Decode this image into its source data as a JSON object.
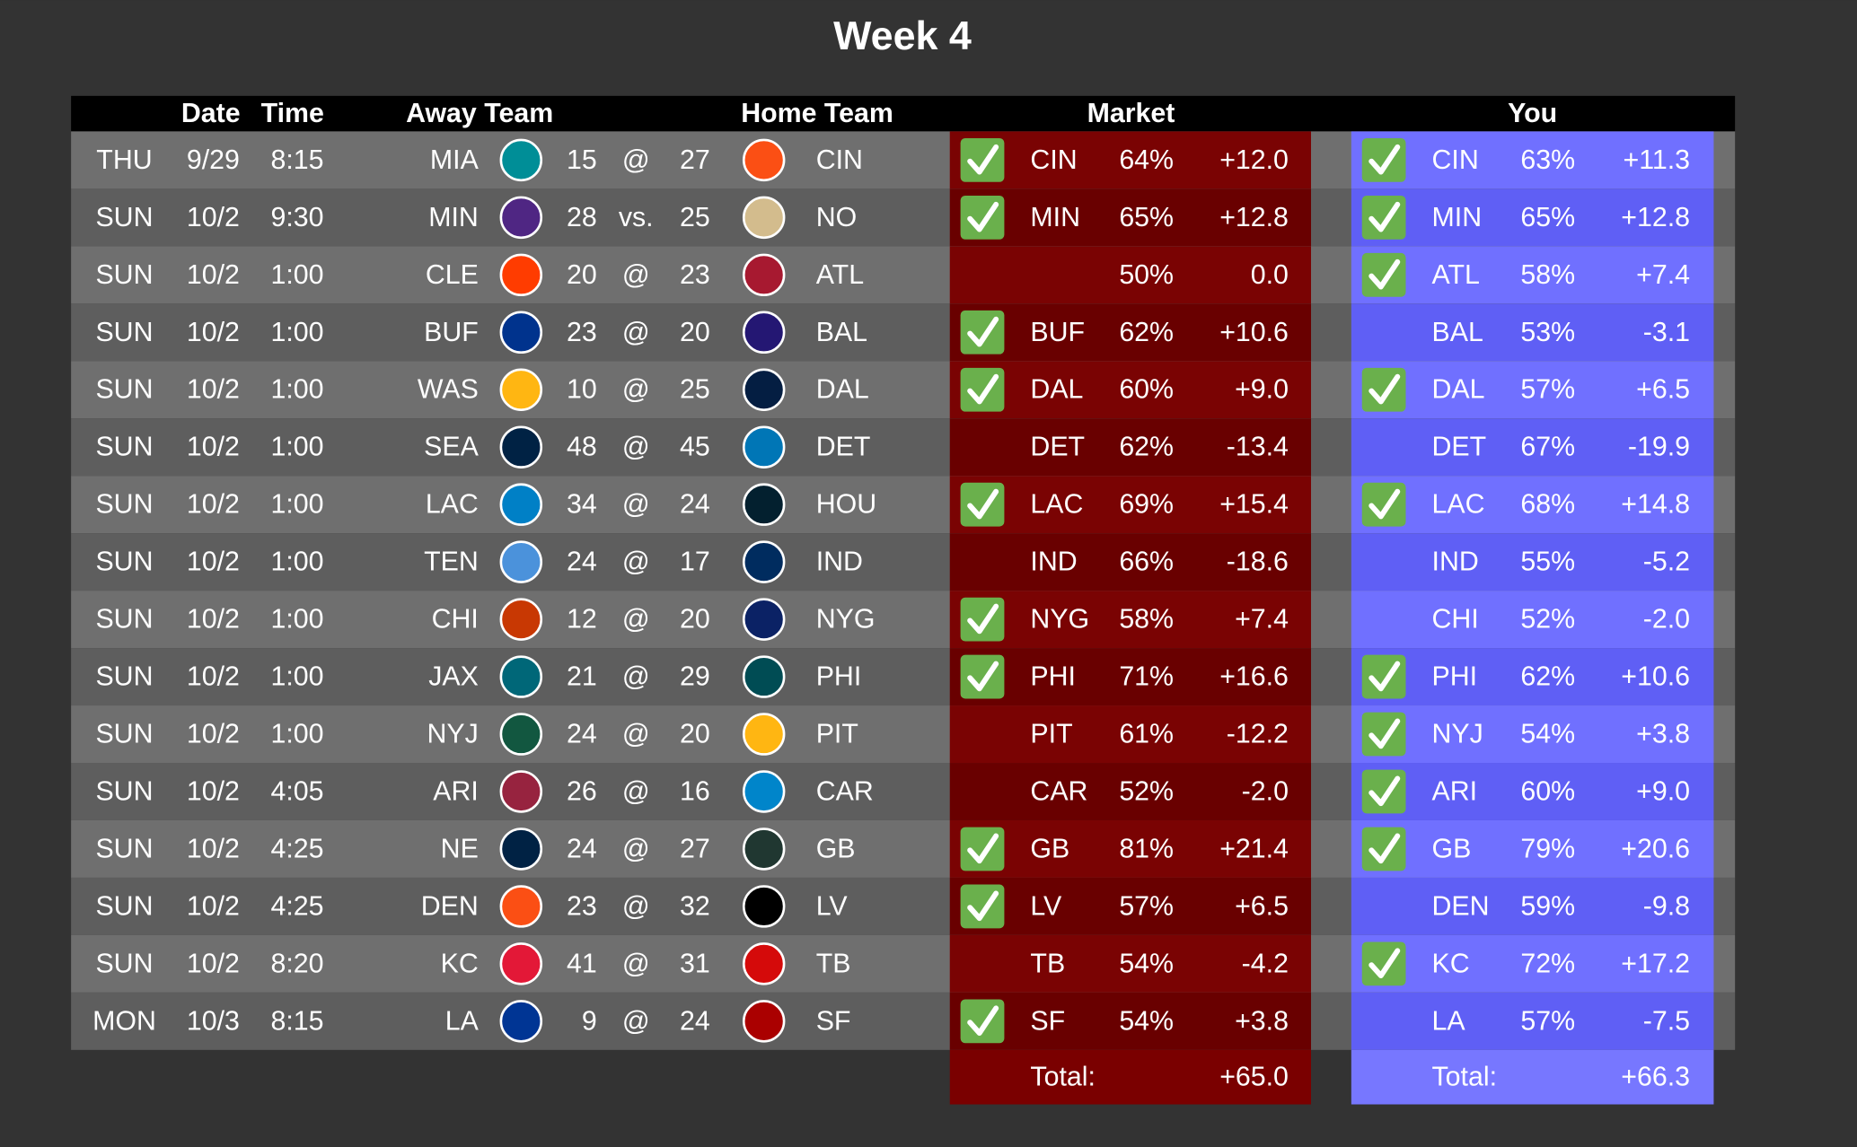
{
  "title": "Week 4",
  "headers": {
    "date": "Date",
    "time": "Time",
    "away": "Away Team",
    "home": "Home Team",
    "market": "Market",
    "you": "You"
  },
  "rows": [
    {
      "day": "THU",
      "date": "9/29",
      "time": "8:15",
      "away": "MIA",
      "away_logo": "#008e97",
      "away_score": 15,
      "sep": "@",
      "home_score": 27,
      "home_logo": "#fb4f14",
      "home": "CIN",
      "market": {
        "check": true,
        "team": "CIN",
        "pct": "64%",
        "spread": "+12.0"
      },
      "you": {
        "check": true,
        "team": "CIN",
        "pct": "63%",
        "spread": "+11.3"
      }
    },
    {
      "day": "SUN",
      "date": "10/2",
      "time": "9:30",
      "away": "MIN",
      "away_logo": "#4f2683",
      "away_score": 28,
      "sep": "vs.",
      "home_score": 25,
      "home_logo": "#d3bc8d",
      "home": "NO",
      "market": {
        "check": true,
        "team": "MIN",
        "pct": "65%",
        "spread": "+12.8"
      },
      "you": {
        "check": true,
        "team": "MIN",
        "pct": "65%",
        "spread": "+12.8"
      }
    },
    {
      "day": "SUN",
      "date": "10/2",
      "time": "1:00",
      "away": "CLE",
      "away_logo": "#ff3c00",
      "away_score": 20,
      "sep": "@",
      "home_score": 23,
      "home_logo": "#a71930",
      "home": "ATL",
      "market": {
        "check": false,
        "pct": "50%",
        "spread": "0.0"
      },
      "you": {
        "check": true,
        "team": "ATL",
        "pct": "58%",
        "spread": "+7.4"
      }
    },
    {
      "day": "SUN",
      "date": "10/2",
      "time": "1:00",
      "away": "BUF",
      "away_logo": "#00338d",
      "away_score": 23,
      "sep": "@",
      "home_score": 20,
      "home_logo": "#241773",
      "home": "BAL",
      "market": {
        "check": true,
        "team": "BUF",
        "pct": "62%",
        "spread": "+10.6"
      },
      "you": {
        "check": false,
        "team": "BAL",
        "pct": "53%",
        "spread": "-3.1"
      }
    },
    {
      "day": "SUN",
      "date": "10/2",
      "time": "1:00",
      "away": "WAS",
      "away_logo": "#ffb612",
      "away_score": 10,
      "sep": "@",
      "home_score": 25,
      "home_logo": "#041e42",
      "home": "DAL",
      "market": {
        "check": true,
        "team": "DAL",
        "pct": "60%",
        "spread": "+9.0"
      },
      "you": {
        "check": true,
        "team": "DAL",
        "pct": "57%",
        "spread": "+6.5"
      }
    },
    {
      "day": "SUN",
      "date": "10/2",
      "time": "1:00",
      "away": "SEA",
      "away_logo": "#002244",
      "away_score": 48,
      "sep": "@",
      "home_score": 45,
      "home_logo": "#0076b6",
      "home": "DET",
      "market": {
        "check": false,
        "team": "DET",
        "pct": "62%",
        "spread": "-13.4"
      },
      "you": {
        "check": false,
        "team": "DET",
        "pct": "67%",
        "spread": "-19.9"
      }
    },
    {
      "day": "SUN",
      "date": "10/2",
      "time": "1:00",
      "away": "LAC",
      "away_logo": "#0080c6",
      "away_score": 34,
      "sep": "@",
      "home_score": 24,
      "home_logo": "#03202f",
      "home": "HOU",
      "market": {
        "check": true,
        "team": "LAC",
        "pct": "69%",
        "spread": "+15.4"
      },
      "you": {
        "check": true,
        "team": "LAC",
        "pct": "68%",
        "spread": "+14.8"
      }
    },
    {
      "day": "SUN",
      "date": "10/2",
      "time": "1:00",
      "away": "TEN",
      "away_logo": "#4b92db",
      "away_score": 24,
      "sep": "@",
      "home_score": 17,
      "home_logo": "#002c5f",
      "home": "IND",
      "market": {
        "check": false,
        "team": "IND",
        "pct": "66%",
        "spread": "-18.6"
      },
      "you": {
        "check": false,
        "team": "IND",
        "pct": "55%",
        "spread": "-5.2"
      }
    },
    {
      "day": "SUN",
      "date": "10/2",
      "time": "1:00",
      "away": "CHI",
      "away_logo": "#c83803",
      "away_score": 12,
      "sep": "@",
      "home_score": 20,
      "home_logo": "#0b2265",
      "home": "NYG",
      "market": {
        "check": true,
        "team": "NYG",
        "pct": "58%",
        "spread": "+7.4"
      },
      "you": {
        "check": false,
        "team": "CHI",
        "pct": "52%",
        "spread": "-2.0"
      }
    },
    {
      "day": "SUN",
      "date": "10/2",
      "time": "1:00",
      "away": "JAX",
      "away_logo": "#006778",
      "away_score": 21,
      "sep": "@",
      "home_score": 29,
      "home_logo": "#004c54",
      "home": "PHI",
      "market": {
        "check": true,
        "team": "PHI",
        "pct": "71%",
        "spread": "+16.6"
      },
      "you": {
        "check": true,
        "team": "PHI",
        "pct": "62%",
        "spread": "+10.6"
      }
    },
    {
      "day": "SUN",
      "date": "10/2",
      "time": "1:00",
      "away": "NYJ",
      "away_logo": "#125740",
      "away_score": 24,
      "sep": "@",
      "home_score": 20,
      "home_logo": "#ffb612",
      "home": "PIT",
      "market": {
        "check": false,
        "team": "PIT",
        "pct": "61%",
        "spread": "-12.2"
      },
      "you": {
        "check": true,
        "team": "NYJ",
        "pct": "54%",
        "spread": "+3.8"
      }
    },
    {
      "day": "SUN",
      "date": "10/2",
      "time": "4:05",
      "away": "ARI",
      "away_logo": "#97233f",
      "away_score": 26,
      "sep": "@",
      "home_score": 16,
      "home_logo": "#0085ca",
      "home": "CAR",
      "market": {
        "check": false,
        "team": "CAR",
        "pct": "52%",
        "spread": "-2.0"
      },
      "you": {
        "check": true,
        "team": "ARI",
        "pct": "60%",
        "spread": "+9.0"
      }
    },
    {
      "day": "SUN",
      "date": "10/2",
      "time": "4:25",
      "away": "NE",
      "away_logo": "#002244",
      "away_score": 24,
      "sep": "@",
      "home_score": 27,
      "home_logo": "#203731",
      "home": "GB",
      "market": {
        "check": true,
        "team": "GB",
        "pct": "81%",
        "spread": "+21.4"
      },
      "you": {
        "check": true,
        "team": "GB",
        "pct": "79%",
        "spread": "+20.6"
      }
    },
    {
      "day": "SUN",
      "date": "10/2",
      "time": "4:25",
      "away": "DEN",
      "away_logo": "#fb4f14",
      "away_score": 23,
      "sep": "@",
      "home_score": 32,
      "home_logo": "#000000",
      "home": "LV",
      "market": {
        "check": true,
        "team": "LV",
        "pct": "57%",
        "spread": "+6.5"
      },
      "you": {
        "check": false,
        "team": "DEN",
        "pct": "59%",
        "spread": "-9.8"
      }
    },
    {
      "day": "SUN",
      "date": "10/2",
      "time": "8:20",
      "away": "KC",
      "away_logo": "#e31837",
      "away_score": 41,
      "sep": "@",
      "home_score": 31,
      "home_logo": "#d50a0a",
      "home": "TB",
      "market": {
        "check": false,
        "team": "TB",
        "pct": "54%",
        "spread": "-4.2"
      },
      "you": {
        "check": true,
        "team": "KC",
        "pct": "72%",
        "spread": "+17.2"
      }
    },
    {
      "day": "MON",
      "date": "10/3",
      "time": "8:15",
      "away": "LA",
      "away_logo": "#003594",
      "away_score": 9,
      "sep": "@",
      "home_score": 24,
      "home_logo": "#aa0000",
      "home": "SF",
      "market": {
        "check": true,
        "team": "SF",
        "pct": "54%",
        "spread": "+3.8"
      },
      "you": {
        "check": false,
        "team": "LA",
        "pct": "57%",
        "spread": "-7.5"
      }
    }
  ],
  "totals": {
    "label": "Total:",
    "market": "+65.0",
    "you": "+66.3"
  }
}
